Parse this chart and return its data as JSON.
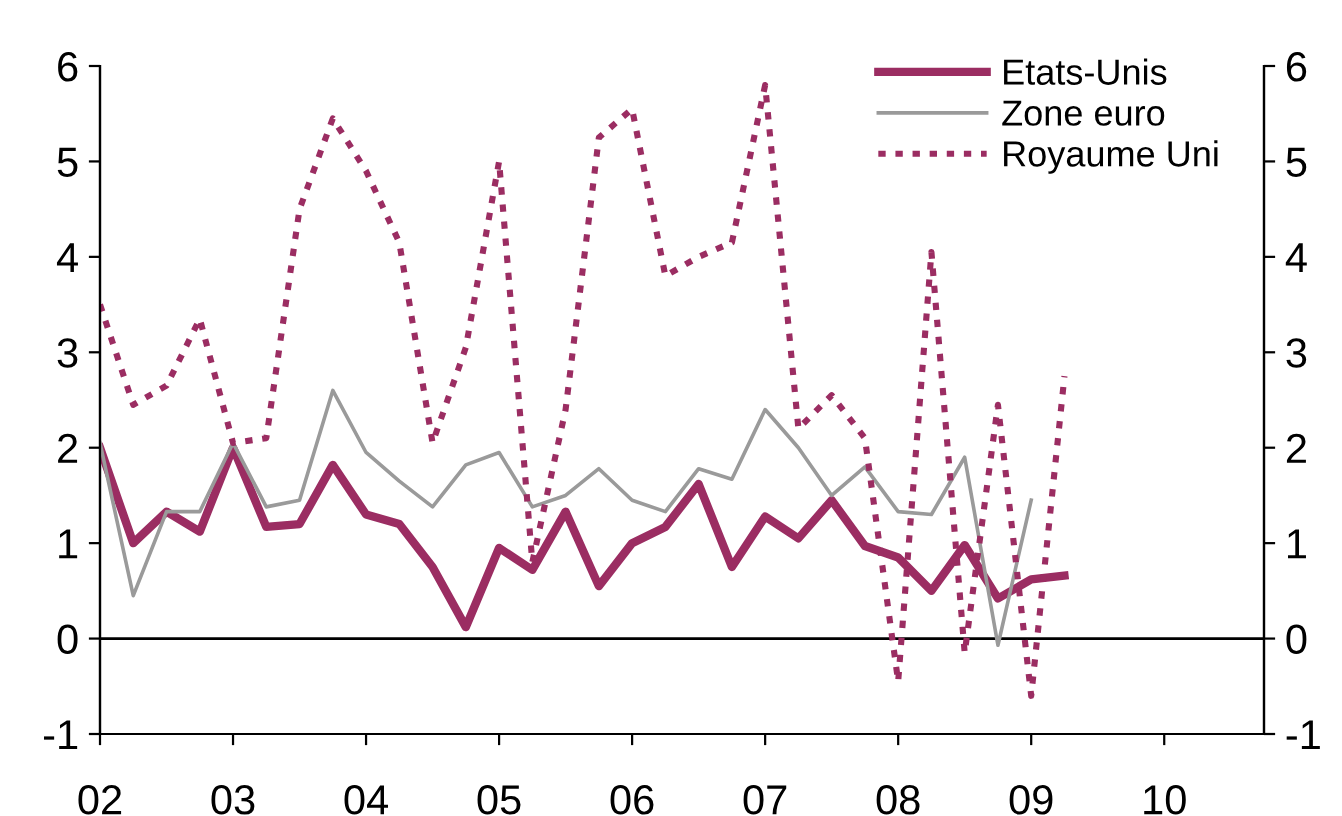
{
  "chart_data": {
    "type": "line",
    "series": [
      {
        "name": "Etats-Unis",
        "color": "#9b2d62",
        "line_style": "solid",
        "x": [
          2002.0,
          2002.25,
          2002.5,
          2002.75,
          2003.0,
          2003.25,
          2003.5,
          2003.75,
          2004.0,
          2004.25,
          2004.5,
          2004.75,
          2005.0,
          2005.25,
          2005.5,
          2005.75,
          2006.0,
          2006.25,
          2006.5,
          2006.75,
          2007.0,
          2007.25,
          2007.5,
          2007.75,
          2008.0,
          2008.25,
          2008.5,
          2008.75,
          2009.0,
          2009.25
        ],
        "values": [
          2.0,
          1.0,
          1.33,
          1.12,
          2.0,
          1.17,
          1.2,
          1.82,
          1.3,
          1.2,
          0.75,
          0.12,
          0.95,
          0.72,
          1.33,
          0.55,
          1.0,
          1.17,
          1.62,
          0.75,
          1.28,
          1.05,
          1.45,
          0.97,
          0.85,
          0.5,
          0.98,
          0.42,
          0.62,
          0.66
        ]
      },
      {
        "name": "Zone euro",
        "color": "#9a9a9a",
        "line_style": "solid",
        "x": [
          2002.0,
          2002.25,
          2002.5,
          2002.75,
          2003.0,
          2003.25,
          2003.5,
          2003.75,
          2004.0,
          2004.25,
          2004.5,
          2004.75,
          2005.0,
          2005.25,
          2005.5,
          2005.75,
          2006.0,
          2006.25,
          2006.5,
          2006.75,
          2007.0,
          2007.25,
          2007.5,
          2007.75,
          2008.0,
          2008.25,
          2008.5,
          2008.75,
          2009.0
        ],
        "values": [
          2.05,
          0.45,
          1.33,
          1.33,
          2.05,
          1.38,
          1.45,
          2.6,
          1.95,
          1.65,
          1.38,
          1.82,
          1.95,
          1.38,
          1.5,
          1.78,
          1.45,
          1.33,
          1.78,
          1.67,
          2.4,
          2.0,
          1.5,
          1.8,
          1.33,
          1.3,
          1.9,
          -0.07,
          1.45
        ]
      },
      {
        "name": "Royaume Uni",
        "color": "#9b2d62",
        "line_style": "dotted",
        "x": [
          2002.0,
          2002.25,
          2002.5,
          2002.75,
          2003.0,
          2003.25,
          2003.5,
          2003.75,
          2004.0,
          2004.25,
          2004.5,
          2004.75,
          2005.0,
          2005.25,
          2005.5,
          2005.75,
          2006.0,
          2006.25,
          2006.5,
          2006.75,
          2007.0,
          2007.25,
          2007.5,
          2007.75,
          2008.0,
          2008.25,
          2008.5,
          2008.75,
          2009.0,
          2009.25
        ],
        "values": [
          3.5,
          2.45,
          2.65,
          3.35,
          2.05,
          2.1,
          4.5,
          5.45,
          4.9,
          4.15,
          2.05,
          3.05,
          5.0,
          0.8,
          2.4,
          5.25,
          5.55,
          3.8,
          4.0,
          4.15,
          5.8,
          2.2,
          2.55,
          2.1,
          -0.45,
          4.05,
          -0.15,
          2.45,
          -0.6,
          2.75
        ]
      }
    ],
    "xlim": [
      2002,
      2010.75
    ],
    "xticks": [
      {
        "value": 2002,
        "label": "02"
      },
      {
        "value": 2003,
        "label": "03"
      },
      {
        "value": 2004,
        "label": "04"
      },
      {
        "value": 2005,
        "label": "05"
      },
      {
        "value": 2006,
        "label": "06"
      },
      {
        "value": 2007,
        "label": "07"
      },
      {
        "value": 2008,
        "label": "08"
      },
      {
        "value": 2009,
        "label": "09"
      },
      {
        "value": 2010,
        "label": "10"
      }
    ],
    "ylim": [
      -1,
      6
    ],
    "yticks": [
      -1,
      0,
      1,
      2,
      3,
      4,
      5,
      6
    ],
    "y2lim": [
      -1,
      6
    ],
    "y2ticks": [
      -1,
      0,
      1,
      2,
      3,
      4,
      5,
      6
    ],
    "ref_lines": [
      {
        "axis": "y",
        "value": 0,
        "color": "#000000"
      }
    ],
    "legend": "top right",
    "grid": false,
    "marker": "none"
  }
}
